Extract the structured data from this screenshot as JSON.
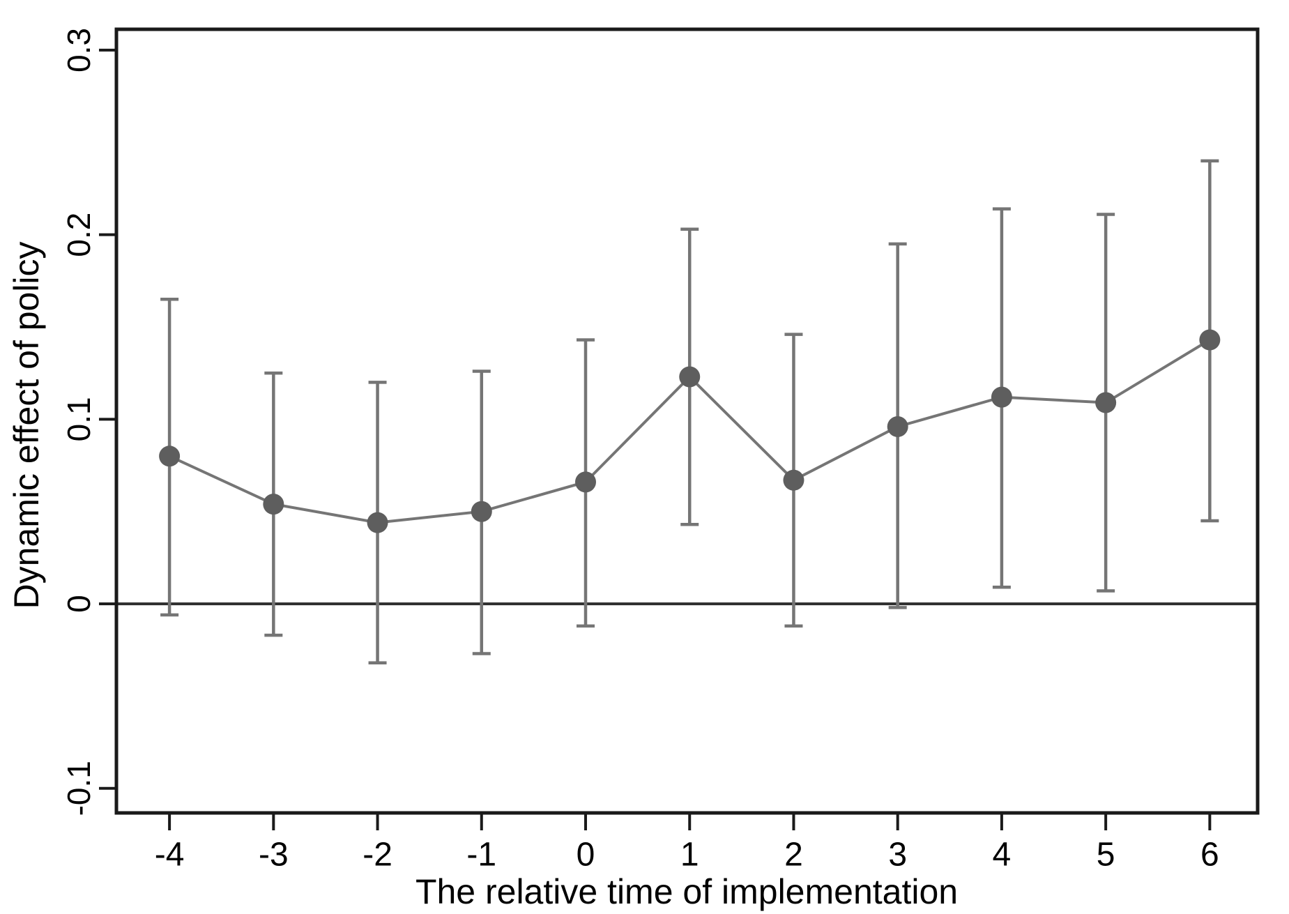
{
  "chart_data": {
    "type": "line",
    "subtype": "errorbar-point-estimates",
    "xlabel": "The relative time of implementation",
    "ylabel": "Dynamic effect of policy",
    "x": [
      -4,
      -3,
      -2,
      -1,
      0,
      1,
      2,
      3,
      4,
      5,
      6
    ],
    "estimates": [
      0.08,
      0.054,
      0.044,
      0.05,
      0.066,
      0.123,
      0.067,
      0.096,
      0.112,
      0.109,
      0.143
    ],
    "ci_lower": [
      -0.006,
      -0.017,
      -0.032,
      -0.027,
      -0.012,
      0.043,
      -0.012,
      -0.002,
      0.009,
      0.007,
      0.045
    ],
    "ci_upper": [
      0.165,
      0.125,
      0.12,
      0.126,
      0.143,
      0.203,
      0.146,
      0.195,
      0.214,
      0.211,
      0.24
    ],
    "xticks": [
      {
        "v": -4,
        "label": "-4"
      },
      {
        "v": -3,
        "label": "-3"
      },
      {
        "v": -2,
        "label": "-2"
      },
      {
        "v": -1,
        "label": "-1"
      },
      {
        "v": 0,
        "label": "0"
      },
      {
        "v": 1,
        "label": "1"
      },
      {
        "v": 2,
        "label": "2"
      },
      {
        "v": 3,
        "label": "3"
      },
      {
        "v": 4,
        "label": "4"
      },
      {
        "v": 5,
        "label": "5"
      },
      {
        "v": 6,
        "label": "6"
      }
    ],
    "yticks": [
      {
        "v": 0.3,
        "label": "0.3"
      },
      {
        "v": 0.2,
        "label": "0.2"
      },
      {
        "v": 0.1,
        "label": "0.1"
      },
      {
        "v": 0,
        "label": "0"
      },
      {
        "v": -0.1,
        "label": "-0.1"
      }
    ],
    "xlim": [
      -4.51,
      6.46
    ],
    "ylim": [
      -0.1133,
      0.3113
    ],
    "zero_reference_line": true,
    "grid": false,
    "legend": null,
    "marker": "circle"
  },
  "colors": {
    "marker": "#5e5e5e",
    "error_bar": "#757575",
    "line": "#757575",
    "axis": "#1a1a1a",
    "zero_line": "#2e2e2e",
    "text": "#000000",
    "background": "#ffffff"
  }
}
